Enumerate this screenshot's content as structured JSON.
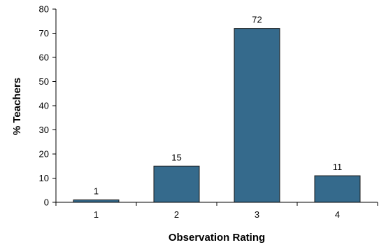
{
  "chart_data": {
    "type": "bar",
    "categories": [
      "1",
      "2",
      "3",
      "4"
    ],
    "values": [
      1,
      15,
      72,
      11
    ],
    "data_labels": [
      "1",
      "15",
      "72",
      "11"
    ],
    "xlabel": "Observation Rating",
    "ylabel": "% Teachers",
    "ylim": [
      0,
      80
    ],
    "yticks": [
      "0",
      "10",
      "20",
      "30",
      "40",
      "50",
      "60",
      "70",
      "80"
    ],
    "grid": false,
    "legend": "none",
    "colors": {
      "bar_fill": "#356a8c",
      "bar_stroke": "#1a1a1a",
      "axis": "#000000"
    }
  }
}
